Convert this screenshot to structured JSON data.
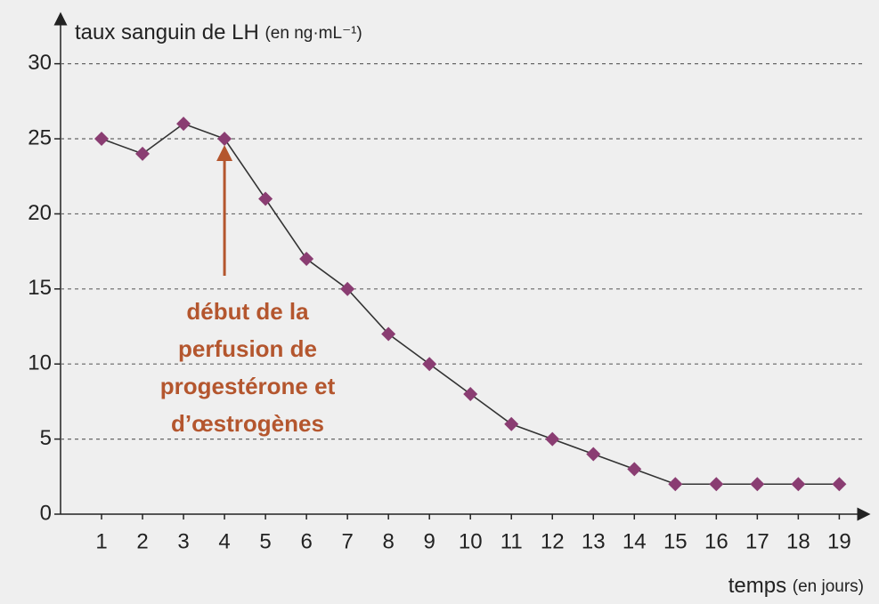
{
  "chart_data": {
    "type": "line",
    "y_label": "taux sanguin de LH",
    "y_label_unit": "(en ng·mL⁻¹)",
    "x_label": "temps",
    "x_label_unit": "(en jours)",
    "x": [
      1,
      2,
      3,
      4,
      5,
      6,
      7,
      8,
      9,
      10,
      11,
      12,
      13,
      14,
      15,
      16,
      17,
      18,
      19
    ],
    "series": [
      {
        "name": "LH",
        "color": "#8a3d72",
        "line_color": "#333333",
        "values": [
          25,
          24,
          26,
          25,
          21,
          17,
          15,
          12,
          10,
          8,
          6,
          5,
          4,
          3,
          2,
          2,
          2,
          2,
          2
        ]
      }
    ],
    "xlim": [
      0,
      19.6
    ],
    "xticks": [
      1,
      2,
      3,
      4,
      5,
      6,
      7,
      8,
      9,
      10,
      11,
      12,
      13,
      14,
      15,
      16,
      17,
      18,
      19
    ],
    "ylim": [
      0,
      33
    ],
    "yticks": [
      0,
      5,
      10,
      15,
      20,
      25,
      30
    ],
    "grid": true,
    "annotation": {
      "lines": [
        "début de la",
        "perfusion de",
        "progestérone et",
        "d’œstrogènes"
      ],
      "x": 4,
      "color": "#b4562e"
    }
  }
}
